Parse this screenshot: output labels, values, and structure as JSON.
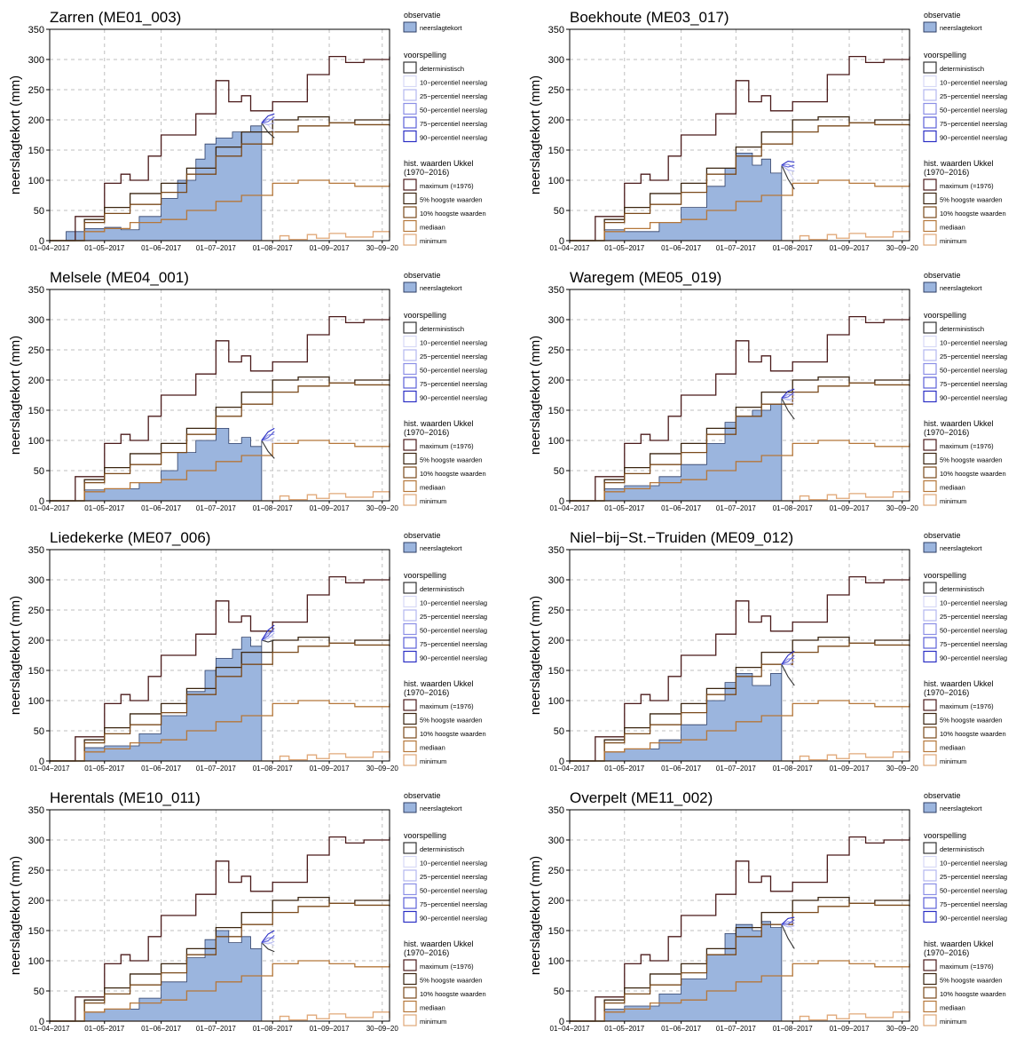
{
  "colors": {
    "observation_fill": "#9bb5de",
    "observation_edge": "#2f3f66",
    "deterministic": "#333333",
    "percentile_colors": [
      "#d7d9f6",
      "#b3b7f0",
      "#8b8fe6",
      "#5c60d8",
      "#2a2ec4"
    ],
    "hist_colors": [
      "#4b1b1b",
      "#3a2510",
      "#7a4a1c",
      "#b5773a",
      "#e0a878"
    ],
    "grid": "#bfbfbf"
  },
  "legend": {
    "observation_title": "observatie",
    "observation_item": "neerslagtekort",
    "forecast_title": "voorspelling",
    "forecast_items": [
      "deterministisch",
      "10−percentiel neerslag",
      "25−percentiel neerslag",
      "50−percentiel neerslag",
      "75−percentiel neerslag",
      "90−percentiel neerslag"
    ],
    "hist_title_1": "hist. waarden Ukkel",
    "hist_title_2": "(1970−2016)",
    "hist_items": [
      "maximum (=1976)",
      "5% hoogste waarden",
      "10% hoogste waarden",
      "mediaan",
      "minimum"
    ]
  },
  "chart_data": {
    "type": "area",
    "ylabel": "neerslagtekort (mm)",
    "ylim": [
      0,
      350
    ],
    "y_ticks": [
      0,
      50,
      100,
      150,
      200,
      250,
      300,
      350
    ],
    "x_range": [
      "2017-04-01",
      "2017-10-04"
    ],
    "x_ticks": [
      {
        "date": "2017-04-01",
        "label": "01−04−2017"
      },
      {
        "date": "2017-05-01",
        "label": "01−05−2017"
      },
      {
        "date": "2017-06-01",
        "label": "01−06−2017"
      },
      {
        "date": "2017-07-01",
        "label": "01−07−2017"
      },
      {
        "date": "2017-08-01",
        "label": "01−08−2017"
      },
      {
        "date": "2017-09-01",
        "label": "01−09−2017"
      },
      {
        "date": "2017-09-30",
        "label": "30−09−20"
      }
    ],
    "grid": true,
    "historical": {
      "maximum": [
        [
          "2017-04-01",
          0
        ],
        [
          "2017-04-15",
          40
        ],
        [
          "2017-05-01",
          95
        ],
        [
          "2017-05-10",
          110
        ],
        [
          "2017-05-15",
          100
        ],
        [
          "2017-05-25",
          140
        ],
        [
          "2017-06-01",
          175
        ],
        [
          "2017-06-20",
          210
        ],
        [
          "2017-07-01",
          265
        ],
        [
          "2017-07-08",
          230
        ],
        [
          "2017-07-15",
          240
        ],
        [
          "2017-07-20",
          215
        ],
        [
          "2017-08-01",
          230
        ],
        [
          "2017-08-20",
          275
        ],
        [
          "2017-09-01",
          305
        ],
        [
          "2017-09-10",
          295
        ],
        [
          "2017-09-20",
          300
        ],
        [
          "2017-10-04",
          305
        ]
      ],
      "p5": [
        [
          "2017-04-01",
          0
        ],
        [
          "2017-04-20",
          35
        ],
        [
          "2017-05-01",
          55
        ],
        [
          "2017-05-15",
          78
        ],
        [
          "2017-06-01",
          95
        ],
        [
          "2017-06-15",
          120
        ],
        [
          "2017-07-01",
          155
        ],
        [
          "2017-07-15",
          180
        ],
        [
          "2017-08-01",
          200
        ],
        [
          "2017-08-15",
          205
        ],
        [
          "2017-09-01",
          195
        ],
        [
          "2017-09-15",
          200
        ],
        [
          "2017-10-04",
          210
        ]
      ],
      "p10": [
        [
          "2017-04-01",
          0
        ],
        [
          "2017-04-20",
          30
        ],
        [
          "2017-05-01",
          45
        ],
        [
          "2017-05-15",
          60
        ],
        [
          "2017-06-01",
          80
        ],
        [
          "2017-06-15",
          110
        ],
        [
          "2017-07-01",
          140
        ],
        [
          "2017-07-15",
          160
        ],
        [
          "2017-08-01",
          180
        ],
        [
          "2017-08-15",
          190
        ],
        [
          "2017-09-01",
          195
        ],
        [
          "2017-09-15",
          192
        ],
        [
          "2017-10-04",
          190
        ]
      ],
      "median": [
        [
          "2017-04-01",
          0
        ],
        [
          "2017-04-20",
          15
        ],
        [
          "2017-05-01",
          20
        ],
        [
          "2017-05-15",
          30
        ],
        [
          "2017-06-01",
          35
        ],
        [
          "2017-06-15",
          50
        ],
        [
          "2017-07-01",
          65
        ],
        [
          "2017-07-15",
          75
        ],
        [
          "2017-08-01",
          95
        ],
        [
          "2017-08-15",
          100
        ],
        [
          "2017-09-01",
          95
        ],
        [
          "2017-09-15",
          90
        ],
        [
          "2017-10-04",
          95
        ]
      ],
      "minimum": [
        [
          "2017-04-01",
          0
        ],
        [
          "2017-08-01",
          0
        ],
        [
          "2017-08-05",
          8
        ],
        [
          "2017-08-10",
          2
        ],
        [
          "2017-08-20",
          10
        ],
        [
          "2017-08-25",
          4
        ],
        [
          "2017-09-01",
          12
        ],
        [
          "2017-09-10",
          6
        ],
        [
          "2017-09-25",
          15
        ],
        [
          "2017-10-04",
          5
        ]
      ]
    },
    "stations": [
      {
        "title": "Zarren (ME01_003)",
        "observed": [
          [
            "2017-04-01",
            0
          ],
          [
            "2017-04-10",
            15
          ],
          [
            "2017-04-20",
            20
          ],
          [
            "2017-05-01",
            22
          ],
          [
            "2017-05-10",
            18
          ],
          [
            "2017-05-20",
            40
          ],
          [
            "2017-06-01",
            70
          ],
          [
            "2017-06-10",
            100
          ],
          [
            "2017-06-20",
            135
          ],
          [
            "2017-06-25",
            160
          ],
          [
            "2017-07-01",
            170
          ],
          [
            "2017-07-10",
            180
          ],
          [
            "2017-07-20",
            190
          ],
          [
            "2017-07-26",
            195
          ]
        ],
        "forecast_end": [
          170,
          180,
          195,
          200,
          205,
          210
        ]
      },
      {
        "title": "Boekhoute (ME03_017)",
        "observed": [
          [
            "2017-04-01",
            0
          ],
          [
            "2017-04-20",
            18
          ],
          [
            "2017-05-01",
            15
          ],
          [
            "2017-05-20",
            30
          ],
          [
            "2017-06-01",
            55
          ],
          [
            "2017-06-15",
            90
          ],
          [
            "2017-06-25",
            120
          ],
          [
            "2017-07-01",
            145
          ],
          [
            "2017-07-10",
            125
          ],
          [
            "2017-07-15",
            135
          ],
          [
            "2017-07-20",
            112
          ],
          [
            "2017-07-26",
            125
          ]
        ],
        "forecast_end": [
          85,
          100,
          115,
          120,
          125,
          130
        ]
      },
      {
        "title": "Melsele (ME04_001)",
        "observed": [
          [
            "2017-04-01",
            0
          ],
          [
            "2017-04-20",
            18
          ],
          [
            "2017-05-01",
            20
          ],
          [
            "2017-05-20",
            30
          ],
          [
            "2017-06-01",
            50
          ],
          [
            "2017-06-10",
            80
          ],
          [
            "2017-06-20",
            100
          ],
          [
            "2017-07-01",
            120
          ],
          [
            "2017-07-08",
            95
          ],
          [
            "2017-07-15",
            105
          ],
          [
            "2017-07-20",
            90
          ],
          [
            "2017-07-26",
            100
          ]
        ],
        "forecast_end": [
          70,
          95,
          105,
          110,
          115,
          120
        ]
      },
      {
        "title": "Waregem (ME05_019)",
        "observed": [
          [
            "2017-04-01",
            0
          ],
          [
            "2017-04-20",
            20
          ],
          [
            "2017-05-01",
            25
          ],
          [
            "2017-05-20",
            40
          ],
          [
            "2017-06-01",
            60
          ],
          [
            "2017-06-15",
            95
          ],
          [
            "2017-06-25",
            130
          ],
          [
            "2017-07-01",
            140
          ],
          [
            "2017-07-10",
            150
          ],
          [
            "2017-07-20",
            160
          ],
          [
            "2017-07-26",
            170
          ]
        ],
        "forecast_end": [
          135,
          160,
          170,
          175,
          180,
          185
        ]
      },
      {
        "title": "Liedekerke (ME07_006)",
        "observed": [
          [
            "2017-04-01",
            0
          ],
          [
            "2017-04-20",
            22
          ],
          [
            "2017-05-01",
            25
          ],
          [
            "2017-05-20",
            45
          ],
          [
            "2017-06-01",
            75
          ],
          [
            "2017-06-15",
            115
          ],
          [
            "2017-06-25",
            150
          ],
          [
            "2017-07-01",
            170
          ],
          [
            "2017-07-10",
            185
          ],
          [
            "2017-07-15",
            205
          ],
          [
            "2017-07-20",
            190
          ],
          [
            "2017-07-26",
            200
          ]
        ],
        "forecast_end": [
          200,
          205,
          212,
          215,
          220,
          225
        ]
      },
      {
        "title": "Niel−bij−St.−Truiden (ME09_012)",
        "observed": [
          [
            "2017-04-01",
            0
          ],
          [
            "2017-04-20",
            15
          ],
          [
            "2017-05-01",
            20
          ],
          [
            "2017-05-20",
            35
          ],
          [
            "2017-06-01",
            60
          ],
          [
            "2017-06-15",
            100
          ],
          [
            "2017-06-25",
            130
          ],
          [
            "2017-07-01",
            145
          ],
          [
            "2017-07-10",
            125
          ],
          [
            "2017-07-20",
            145
          ],
          [
            "2017-07-26",
            160
          ]
        ],
        "forecast_end": [
          125,
          155,
          165,
          170,
          175,
          182
        ]
      },
      {
        "title": "Herentals (ME10_011)",
        "observed": [
          [
            "2017-04-01",
            0
          ],
          [
            "2017-04-20",
            15
          ],
          [
            "2017-05-01",
            20
          ],
          [
            "2017-05-20",
            38
          ],
          [
            "2017-06-01",
            65
          ],
          [
            "2017-06-15",
            105
          ],
          [
            "2017-06-25",
            135
          ],
          [
            "2017-07-01",
            150
          ],
          [
            "2017-07-08",
            130
          ],
          [
            "2017-07-15",
            140
          ],
          [
            "2017-07-20",
            120
          ],
          [
            "2017-07-26",
            130
          ]
        ],
        "forecast_end": [
          115,
          125,
          132,
          138,
          142,
          150
        ]
      },
      {
        "title": "Overpelt (ME11_002)",
        "observed": [
          [
            "2017-04-01",
            0
          ],
          [
            "2017-04-20",
            20
          ],
          [
            "2017-05-01",
            25
          ],
          [
            "2017-05-20",
            45
          ],
          [
            "2017-06-01",
            70
          ],
          [
            "2017-06-15",
            110
          ],
          [
            "2017-06-25",
            145
          ],
          [
            "2017-07-01",
            160
          ],
          [
            "2017-07-10",
            150
          ],
          [
            "2017-07-15",
            165
          ],
          [
            "2017-07-20",
            155
          ],
          [
            "2017-07-26",
            160
          ]
        ],
        "forecast_end": [
          120,
          150,
          158,
          162,
          168,
          172
        ]
      }
    ]
  }
}
